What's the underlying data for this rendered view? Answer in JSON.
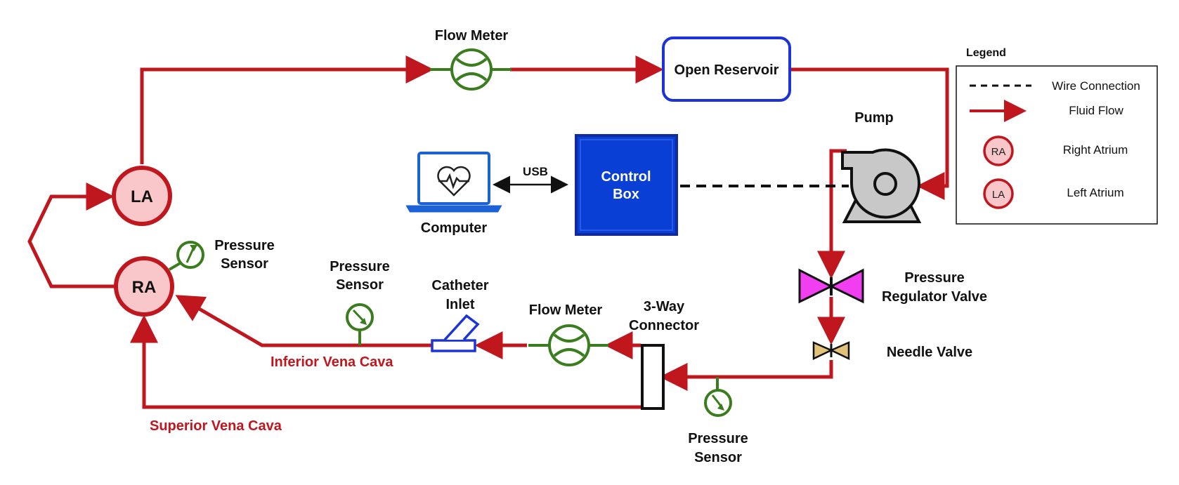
{
  "colors": {
    "flow": "#c0161d",
    "sensor": "#3a7d1e",
    "control_box": "#0a3fd6",
    "reservoir_border": "#1b33d9",
    "valve_magenta": "#f03ef0",
    "valve_tan": "#e2c279",
    "node_fill": "#f9c7c9"
  },
  "labels": {
    "flow_meter_top": "Flow Meter",
    "open_reservoir": "Open Reservoir",
    "pump": "Pump",
    "usb": "USB",
    "control_box_line1": "Control",
    "control_box_line2": "Box",
    "computer": "Computer",
    "la": "LA",
    "ra": "RA",
    "pressure_sensor_ra_line1": "Pressure",
    "pressure_sensor_ra_line2": "Sensor",
    "pressure_sensor_ivc_line1": "Pressure",
    "pressure_sensor_ivc_line2": "Sensor",
    "catheter_line1": "Catheter",
    "catheter_line2": "Inlet",
    "flow_meter_bottom": "Flow Meter",
    "connector_line1": "3-Way",
    "connector_line2": "Connector",
    "regulator_line1": "Pressure",
    "regulator_line2": "Regulator Valve",
    "needle_valve": "Needle Valve",
    "pressure_sensor_bottom_line1": "Pressure",
    "pressure_sensor_bottom_line2": "Sensor",
    "ivc": "Inferior Vena Cava",
    "svc": "Superior Vena Cava"
  },
  "legend": {
    "title": "Legend",
    "wire": "Wire Connection",
    "fluid": "Fluid Flow",
    "ra_badge": "RA",
    "ra_label": "Right Atrium",
    "la_badge": "LA",
    "la_label": "Left Atrium"
  },
  "icons": {
    "flow_meter": "flow-meter-icon",
    "pressure_sensor": "pressure-gauge-icon",
    "pump": "centrifugal-pump-icon",
    "computer": "laptop-heartbeat-icon",
    "valve": "butterfly-valve-icon",
    "catheter": "catheter-icon"
  }
}
